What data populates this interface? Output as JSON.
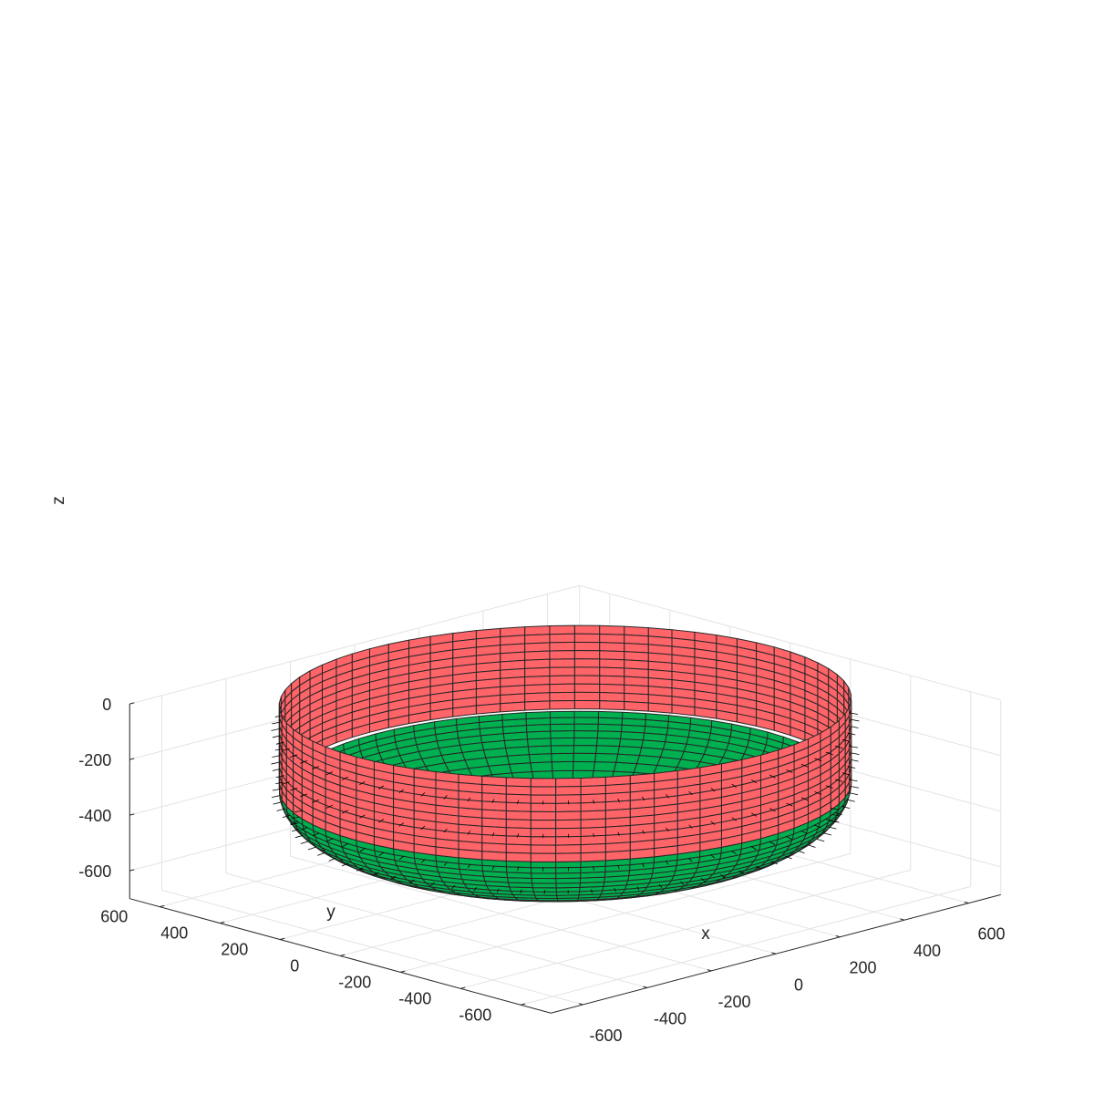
{
  "chart_data": {
    "type": "surface3d",
    "title": "",
    "axes": {
      "x": {
        "label": "x",
        "range": [
          -700,
          700
        ],
        "ticks": [
          -600,
          -400,
          -200,
          0,
          200,
          400,
          600
        ]
      },
      "y": {
        "label": "y",
        "range": [
          -700,
          700
        ],
        "ticks": [
          -600,
          -400,
          -200,
          0,
          200,
          400,
          600
        ]
      },
      "z": {
        "label": "z",
        "range": [
          -700,
          0
        ],
        "ticks": [
          0,
          -200,
          -400,
          -600
        ]
      }
    },
    "grid": true,
    "view": {
      "azimuth": -45,
      "elevation": 45
    },
    "surfaces": [
      {
        "name": "cylinder-upper",
        "color": "#FF6469",
        "radius": 650,
        "z_range": [
          -300,
          0
        ]
      },
      {
        "name": "torispherical-knuckle",
        "color": "#00B050",
        "radius_range": [
          630,
          260
        ],
        "z_range": [
          -300,
          -560
        ]
      },
      {
        "name": "crown-annulus",
        "color": "#00A2F0",
        "radius_range": [
          260,
          130
        ],
        "z": -560
      }
    ],
    "edge_color": "#262626",
    "normal_vectors_color": "#000000"
  }
}
